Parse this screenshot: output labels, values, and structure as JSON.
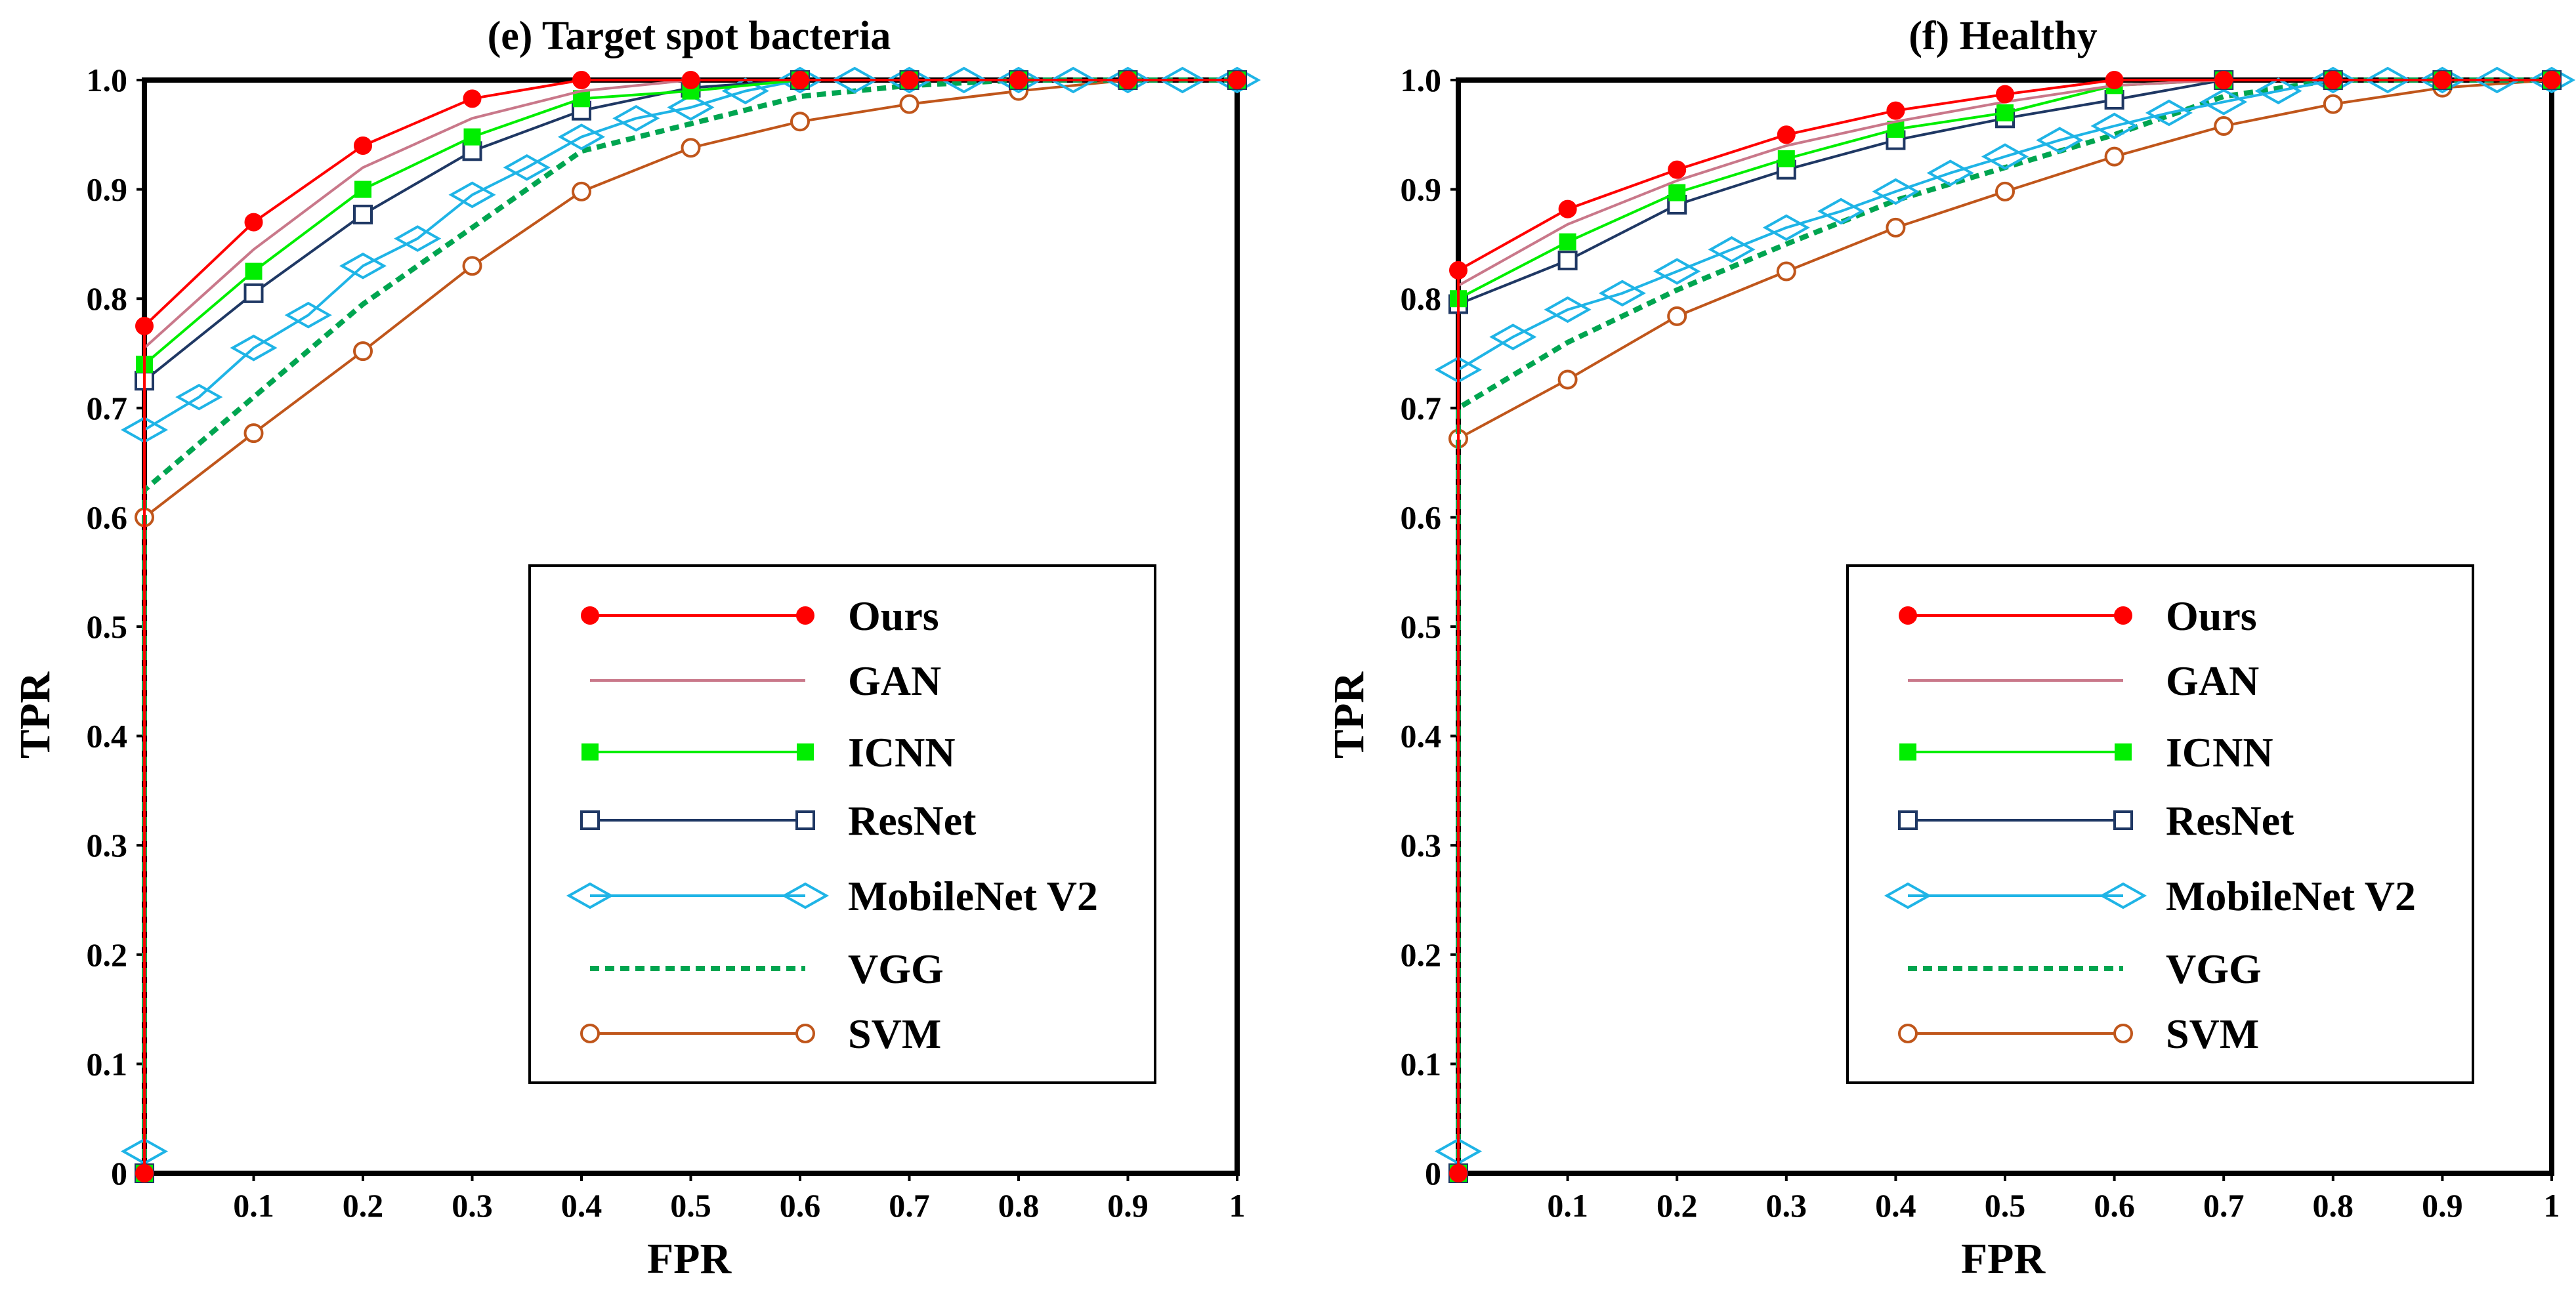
{
  "chart_data": [
    {
      "type": "line",
      "title": "(e) Target spot bacteria",
      "xlabel": "FPR",
      "ylabel": "TPR",
      "xlim": [
        0,
        1
      ],
      "ylim": [
        0,
        1
      ],
      "x_tick_labels": [
        "0.1",
        "0.2",
        "0.3",
        "0.4",
        "0.5",
        "0.6",
        "0.7",
        "0.8",
        "0.9",
        "1"
      ],
      "y_tick_labels": [
        "0",
        "0.1",
        "0.2",
        "0.3",
        "0.4",
        "0.5",
        "0.6",
        "0.7",
        "0.8",
        "0.9",
        "1.0"
      ],
      "legend_position": "lower-right",
      "series": [
        {
          "name": "Ours",
          "color": "#ff0000",
          "marker": "circle-filled",
          "style": "solid",
          "x": [
            0,
            0,
            0.1,
            0.2,
            0.3,
            0.4,
            0.5,
            0.6,
            0.7,
            0.8,
            0.9,
            1
          ],
          "y": [
            0,
            0.775,
            0.87,
            0.94,
            0.983,
            1.0,
            1.0,
            1.0,
            1.0,
            1.0,
            1.0,
            1.0
          ]
        },
        {
          "name": "GAN",
          "color": "#c9788a",
          "marker": "none",
          "style": "solid",
          "x": [
            0,
            0,
            0.1,
            0.2,
            0.3,
            0.4,
            0.5,
            0.6,
            0.7,
            0.8,
            0.9,
            1
          ],
          "y": [
            0,
            0.755,
            0.845,
            0.92,
            0.965,
            0.99,
            1.0,
            1.0,
            1.0,
            1.0,
            1.0,
            1.0
          ]
        },
        {
          "name": "ICNN",
          "color": "#00ee00",
          "marker": "square-filled",
          "style": "solid",
          "x": [
            0,
            0,
            0.1,
            0.2,
            0.3,
            0.4,
            0.5,
            0.6,
            0.7,
            0.8,
            0.9,
            1
          ],
          "y": [
            0,
            0.74,
            0.825,
            0.9,
            0.948,
            0.983,
            0.99,
            1.0,
            1.0,
            1.0,
            1.0,
            1.0
          ]
        },
        {
          "name": "ResNet",
          "color": "#1f3864",
          "marker": "square-open",
          "style": "solid",
          "x": [
            0,
            0,
            0.1,
            0.2,
            0.3,
            0.4,
            0.5,
            0.6,
            0.7,
            0.8,
            0.9,
            1
          ],
          "y": [
            0,
            0.725,
            0.805,
            0.877,
            0.935,
            0.972,
            0.993,
            1.0,
            1.0,
            1.0,
            1.0,
            1.0
          ]
        },
        {
          "name": "MobileNet V2",
          "color": "#1fb4e6",
          "marker": "diamond-open",
          "style": "solid",
          "x": [
            0,
            0,
            0.05,
            0.1,
            0.15,
            0.2,
            0.25,
            0.3,
            0.35,
            0.4,
            0.45,
            0.5,
            0.55,
            0.6,
            0.65,
            0.7,
            0.75,
            0.8,
            0.85,
            0.9,
            0.95,
            1
          ],
          "y": [
            0.02,
            0.68,
            0.71,
            0.755,
            0.785,
            0.83,
            0.855,
            0.895,
            0.92,
            0.948,
            0.965,
            0.975,
            0.99,
            1.0,
            1.0,
            1.0,
            1.0,
            1.0,
            1.0,
            1.0,
            1.0,
            1.0
          ]
        },
        {
          "name": "VGG",
          "color": "#00a550",
          "marker": "none",
          "style": "dashed",
          "x": [
            0,
            0,
            0.1,
            0.2,
            0.3,
            0.4,
            0.5,
            0.6,
            0.7,
            0.8,
            0.9,
            1
          ],
          "y": [
            0,
            0.625,
            0.71,
            0.795,
            0.865,
            0.935,
            0.96,
            0.985,
            0.995,
            1.0,
            1.0,
            1.0
          ]
        },
        {
          "name": "SVM",
          "color": "#c0561b",
          "marker": "circle-open",
          "style": "solid",
          "x": [
            0,
            0,
            0.1,
            0.2,
            0.3,
            0.4,
            0.5,
            0.6,
            0.7,
            0.8,
            0.9,
            1
          ],
          "y": [
            0,
            0.6,
            0.677,
            0.752,
            0.83,
            0.898,
            0.938,
            0.962,
            0.978,
            0.99,
            1.0,
            1.0
          ]
        }
      ]
    },
    {
      "type": "line",
      "title": "(f) Healthy",
      "xlabel": "FPR",
      "ylabel": "TPR",
      "xlim": [
        0,
        1
      ],
      "ylim": [
        0,
        1
      ],
      "x_tick_labels": [
        "0.1",
        "0.2",
        "0.3",
        "0.4",
        "0.5",
        "0.6",
        "0.7",
        "0.8",
        "0.9",
        "1"
      ],
      "y_tick_labels": [
        "0",
        "0.1",
        "0.2",
        "0.3",
        "0.4",
        "0.5",
        "0.6",
        "0.7",
        "0.8",
        "0.9",
        "1.0"
      ],
      "legend_position": "lower-right",
      "series": [
        {
          "name": "Ours",
          "color": "#ff0000",
          "marker": "circle-filled",
          "style": "solid",
          "x": [
            0,
            0,
            0.1,
            0.2,
            0.3,
            0.4,
            0.5,
            0.6,
            0.7,
            0.8,
            0.9,
            1
          ],
          "y": [
            0,
            0.826,
            0.882,
            0.918,
            0.95,
            0.972,
            0.987,
            1.0,
            1.0,
            1.0,
            1.0,
            1.0
          ]
        },
        {
          "name": "GAN",
          "color": "#c9788a",
          "marker": "none",
          "style": "solid",
          "x": [
            0,
            0,
            0.1,
            0.2,
            0.3,
            0.4,
            0.5,
            0.6,
            0.7,
            0.8,
            0.9,
            1
          ],
          "y": [
            0,
            0.812,
            0.868,
            0.908,
            0.94,
            0.962,
            0.98,
            0.995,
            1.0,
            1.0,
            1.0,
            1.0
          ]
        },
        {
          "name": "ICNN",
          "color": "#00ee00",
          "marker": "square-filled",
          "style": "solid",
          "x": [
            0,
            0,
            0.1,
            0.2,
            0.3,
            0.4,
            0.5,
            0.6,
            0.7,
            0.8,
            0.9,
            1
          ],
          "y": [
            0,
            0.8,
            0.852,
            0.897,
            0.928,
            0.955,
            0.97,
            0.995,
            1.0,
            1.0,
            1.0,
            1.0
          ]
        },
        {
          "name": "ResNet",
          "color": "#1f3864",
          "marker": "square-open",
          "style": "solid",
          "x": [
            0,
            0,
            0.1,
            0.2,
            0.3,
            0.4,
            0.5,
            0.6,
            0.7,
            0.8,
            0.9,
            1
          ],
          "y": [
            0,
            0.795,
            0.835,
            0.886,
            0.918,
            0.945,
            0.965,
            0.982,
            1.0,
            1.0,
            1.0,
            1.0
          ]
        },
        {
          "name": "MobileNet V2",
          "color": "#1fb4e6",
          "marker": "diamond-open",
          "style": "solid",
          "x": [
            0,
            0,
            0.05,
            0.1,
            0.15,
            0.2,
            0.25,
            0.3,
            0.35,
            0.4,
            0.45,
            0.5,
            0.55,
            0.6,
            0.65,
            0.7,
            0.75,
            0.8,
            0.85,
            0.9,
            0.95,
            1
          ],
          "y": [
            0.02,
            0.735,
            0.765,
            0.79,
            0.805,
            0.825,
            0.845,
            0.865,
            0.88,
            0.898,
            0.915,
            0.93,
            0.945,
            0.958,
            0.97,
            0.98,
            0.99,
            1.0,
            1.0,
            1.0,
            1.0,
            1.0
          ]
        },
        {
          "name": "VGG",
          "color": "#00a550",
          "marker": "none",
          "style": "dashed",
          "x": [
            0,
            0,
            0.1,
            0.2,
            0.3,
            0.4,
            0.5,
            0.6,
            0.7,
            0.8,
            0.9,
            1
          ],
          "y": [
            0,
            0.7,
            0.76,
            0.808,
            0.85,
            0.89,
            0.92,
            0.95,
            0.985,
            1.0,
            1.0,
            1.0
          ]
        },
        {
          "name": "SVM",
          "color": "#c0561b",
          "marker": "circle-open",
          "style": "solid",
          "x": [
            0,
            0,
            0.1,
            0.2,
            0.3,
            0.4,
            0.5,
            0.6,
            0.7,
            0.8,
            0.9,
            1
          ],
          "y": [
            0,
            0.672,
            0.726,
            0.784,
            0.825,
            0.865,
            0.898,
            0.93,
            0.958,
            0.978,
            0.993,
            1.0
          ]
        }
      ]
    }
  ]
}
